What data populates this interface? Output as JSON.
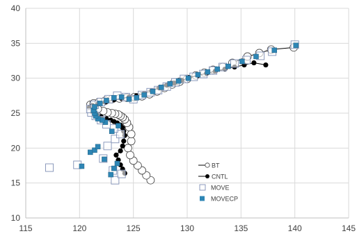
{
  "chart_data": {
    "type": "scatter",
    "title": "",
    "xlabel": "",
    "ylabel": "",
    "xlim": [
      115,
      145
    ],
    "ylim": [
      10,
      40
    ],
    "x_ticks": [
      "115",
      "120",
      "125",
      "130",
      "135",
      "140",
      "145"
    ],
    "y_ticks": [
      "10",
      "15",
      "20",
      "25",
      "30",
      "35",
      "40"
    ],
    "grid": true,
    "legend_position": "inside-lower-right",
    "series": [
      {
        "name": "BT",
        "marker": "open-circle",
        "connected": true,
        "color": "#000000",
        "x": [
          126.6,
          126.2,
          125.8,
          125.4,
          125.0,
          124.7,
          124.5,
          124.8,
          124.8,
          124.6,
          124.4,
          124.2,
          124.0,
          123.8,
          123.6,
          123.3,
          123.0,
          122.6,
          122.2,
          121.7,
          121.3,
          121.0,
          121.3,
          121.8,
          122.4,
          123.0,
          123.7,
          124.4,
          125.1,
          125.8,
          126.5,
          127.2,
          127.9,
          128.6,
          129.3,
          130.0,
          130.8,
          131.6,
          132.4,
          133.3,
          134.2,
          135.6,
          136.7,
          137.8,
          139.9
        ],
        "y": [
          15.4,
          16.1,
          16.8,
          17.5,
          18.2,
          19.0,
          20.0,
          21.0,
          22.0,
          23.0,
          23.6,
          24.1,
          24.4,
          24.6,
          24.8,
          24.9,
          25.0,
          25.1,
          25.3,
          25.6,
          25.9,
          26.2,
          26.4,
          26.6,
          26.8,
          27.0,
          27.1,
          27.2,
          27.3,
          27.4,
          27.7,
          28.1,
          28.6,
          29.1,
          29.5,
          29.9,
          30.4,
          30.8,
          31.2,
          31.6,
          32.2,
          33.1,
          33.6,
          34.1,
          34.4
        ]
      },
      {
        "name": "CNTL",
        "marker": "filled-circle",
        "connected": true,
        "color": "#000000",
        "x": [
          124.2,
          124.0,
          123.8,
          123.6,
          123.4,
          123.8,
          124.0,
          124.1,
          124.2,
          124.1,
          124.0,
          123.8,
          123.5,
          123.2,
          122.9,
          122.5,
          122.0,
          121.6,
          121.2,
          120.9,
          121.2,
          121.7,
          122.4,
          123.2,
          123.9,
          124.6,
          125.3,
          126.0,
          126.7,
          127.4,
          128.1,
          128.8,
          129.5,
          130.2,
          131.0,
          131.8,
          132.6,
          133.5,
          134.4,
          135.3,
          136.2,
          137.3
        ],
        "y": [
          16.4,
          17.0,
          17.6,
          18.3,
          19.0,
          19.6,
          20.3,
          21.0,
          21.8,
          22.4,
          22.9,
          23.3,
          23.6,
          23.8,
          24.0,
          24.2,
          24.5,
          24.8,
          25.2,
          25.8,
          26.1,
          26.3,
          26.6,
          26.9,
          27.1,
          27.3,
          27.5,
          27.8,
          28.2,
          28.6,
          29.0,
          29.3,
          29.7,
          30.1,
          30.4,
          30.7,
          31.0,
          31.3,
          31.6,
          31.9,
          32.2,
          31.9
        ]
      },
      {
        "name": "MOVE",
        "marker": "open-square",
        "connected": false,
        "color": "#7f8fb5",
        "x": [
          117.2,
          119.8,
          123.3,
          123.9,
          123.1,
          122.2,
          122.6,
          123.3,
          123.8,
          123.2,
          122.5,
          122.0,
          121.5,
          121.1,
          121.0,
          121.4,
          122.0,
          122.7,
          123.5,
          124.3,
          125.0,
          125.8,
          126.6,
          127.3,
          128.1,
          128.9,
          129.7,
          130.6,
          131.5,
          132.4,
          133.3,
          134.4,
          135.5,
          136.8,
          137.9,
          140.0
        ],
        "y": [
          17.2,
          17.6,
          15.4,
          16.3,
          16.8,
          18.5,
          20.3,
          21.3,
          22.0,
          22.8,
          23.4,
          24.0,
          24.6,
          25.1,
          25.6,
          26.2,
          26.6,
          27.0,
          27.5,
          27.3,
          27.0,
          27.6,
          28.0,
          28.3,
          28.8,
          29.4,
          29.9,
          30.2,
          30.6,
          31.1,
          31.6,
          32.1,
          32.6,
          33.2,
          33.8,
          34.8
        ]
      },
      {
        "name": "MOVECP",
        "marker": "filled-square",
        "connected": false,
        "color": "#2e86b5",
        "x": [
          120.2,
          121.0,
          121.4,
          121.7,
          122.3,
          122.9,
          123.2,
          123.5,
          123.0,
          123.6,
          122.4,
          122.1,
          121.7,
          121.5,
          121.4,
          121.3,
          121.4,
          121.9,
          122.5,
          123.2,
          123.9,
          124.6,
          125.3,
          126.0,
          126.8,
          127.6,
          128.4,
          129.2,
          130.1,
          131.0,
          131.9,
          132.8,
          133.8,
          135.1,
          136.4,
          138.1,
          140.1
        ],
        "y": [
          17.4,
          19.4,
          19.7,
          20.2,
          18.4,
          16.2,
          17.1,
          17.8,
          22.4,
          23.2,
          23.7,
          24.0,
          24.2,
          24.6,
          25.0,
          25.4,
          25.9,
          26.4,
          26.8,
          27.2,
          27.3,
          27.0,
          27.2,
          27.6,
          28.1,
          28.7,
          29.2,
          29.6,
          30.0,
          30.5,
          30.9,
          31.3,
          31.7,
          32.4,
          33.1,
          34.0,
          34.7
        ]
      }
    ]
  }
}
